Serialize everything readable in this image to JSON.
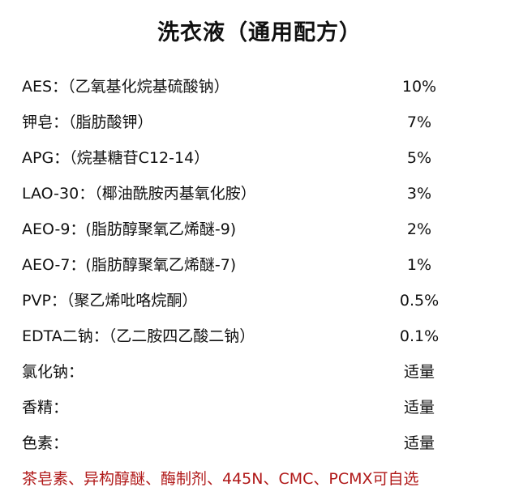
{
  "title": "洗衣液（通用配方）",
  "ingredients": [
    {
      "name": "AES：（乙氧基化烷基硫酸钠）",
      "amount": "10%"
    },
    {
      "name": "钾皂：（脂肪酸钾）",
      "amount": "7%"
    },
    {
      "name": "APG：（烷基糖苷C12-14）",
      "amount": "5%"
    },
    {
      "name": "LAO-30：（椰油酰胺丙基氧化胺）",
      "amount": "3%"
    },
    {
      "name": "AEO-9：(脂肪醇聚氧乙烯醚-9)",
      "amount": "2%"
    },
    {
      "name": "AEO-7：(脂肪醇聚氧乙烯醚-7)",
      "amount": "1%"
    },
    {
      "name": "PVP：（聚乙烯吡咯烷酮）",
      "amount": "0.5%"
    },
    {
      "name": "EDTA二钠：（乙二胺四乙酸二钠）",
      "amount": "0.1%"
    },
    {
      "name": "氯化钠：",
      "amount": "适量"
    },
    {
      "name": "香精：",
      "amount": "适量"
    },
    {
      "name": "色素：",
      "amount": "适量"
    }
  ],
  "note": "茶皂素、异构醇醚、酶制剂、445N、CMC、PCMX可自选",
  "colors": {
    "text": "#111111",
    "note": "#b01818"
  }
}
